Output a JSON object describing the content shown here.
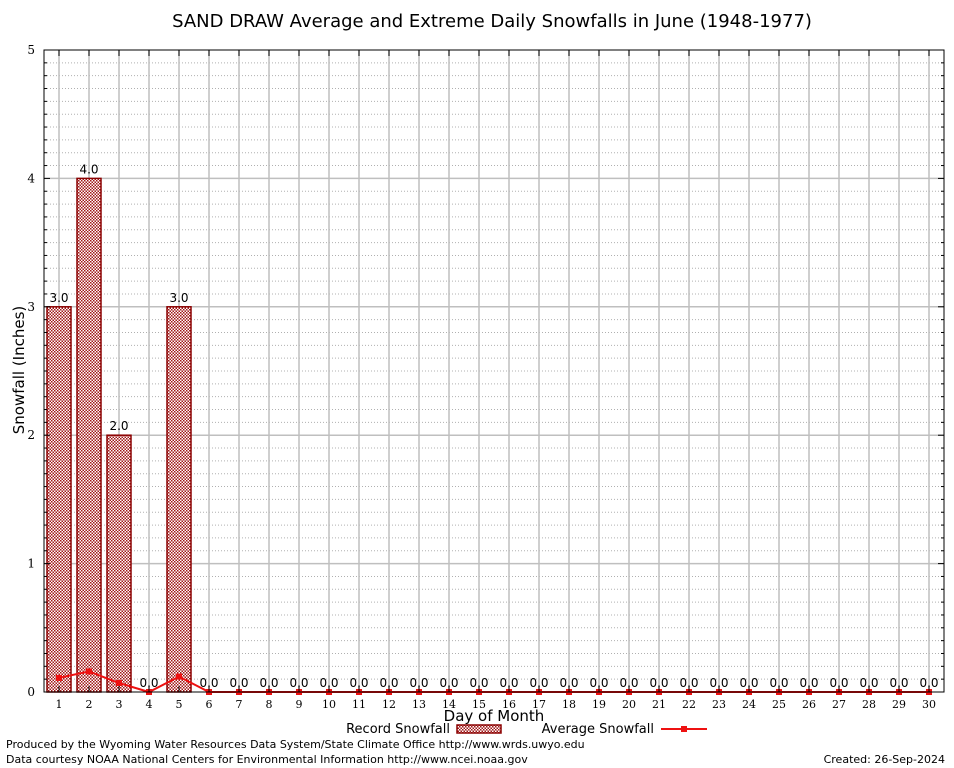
{
  "chart_data": {
    "type": "bar",
    "title": "SAND DRAW Average and Extreme Daily Snowfalls in June (1948-1977)",
    "xlabel": "Day of Month",
    "ylabel": "Snowfall (Inches)",
    "ylim": [
      0,
      5
    ],
    "yticks": [
      "0",
      "1",
      "2",
      "3",
      "4",
      "5"
    ],
    "grid": true,
    "legend_position": "bottom-center",
    "categories": [
      "1",
      "2",
      "3",
      "4",
      "5",
      "6",
      "7",
      "8",
      "9",
      "10",
      "11",
      "12",
      "13",
      "14",
      "15",
      "16",
      "17",
      "18",
      "19",
      "20",
      "21",
      "22",
      "23",
      "24",
      "25",
      "26",
      "27",
      "28",
      "29",
      "30"
    ],
    "series": [
      {
        "name": "Record Snowfall",
        "kind": "bar",
        "color": "#8b0000",
        "values": [
          3.0,
          4.0,
          2.0,
          0.0,
          3.0,
          0.0,
          0.0,
          0.0,
          0.0,
          0.0,
          0.0,
          0.0,
          0.0,
          0.0,
          0.0,
          0.0,
          0.0,
          0.0,
          0.0,
          0.0,
          0.0,
          0.0,
          0.0,
          0.0,
          0.0,
          0.0,
          0.0,
          0.0,
          0.0,
          0.0
        ],
        "labels": [
          "3.0",
          "4.0",
          "2.0",
          "0.0",
          "3.0",
          "0.0",
          "0.0",
          "0.0",
          "0.0",
          "0.0",
          "0.0",
          "0.0",
          "0.0",
          "0.0",
          "0.0",
          "0.0",
          "0.0",
          "0.0",
          "0.0",
          "0.0",
          "0.0",
          "0.0",
          "0.0",
          "0.0",
          "0.0",
          "0.0",
          "0.0",
          "0.0",
          "0.0",
          "0.0"
        ]
      },
      {
        "name": "Average Snowfall",
        "kind": "line",
        "color": "#ee1111",
        "values": [
          0.11,
          0.16,
          0.07,
          0.0,
          0.12,
          0.0,
          0.0,
          0.0,
          0.0,
          0.0,
          0.0,
          0.0,
          0.0,
          0.0,
          0.0,
          0.0,
          0.0,
          0.0,
          0.0,
          0.0,
          0.0,
          0.0,
          0.0,
          0.0,
          0.0,
          0.0,
          0.0,
          0.0,
          0.0,
          0.0
        ]
      }
    ]
  },
  "footer": {
    "produced_by": "Produced by the Wyoming Water Resources Data System/State Climate Office http://www.wrds.uwyo.edu",
    "data_courtesy": "Data courtesy NOAA National Centers for Environmental Information http://www.ncei.noaa.gov",
    "created": "Created: 26-Sep-2024"
  }
}
